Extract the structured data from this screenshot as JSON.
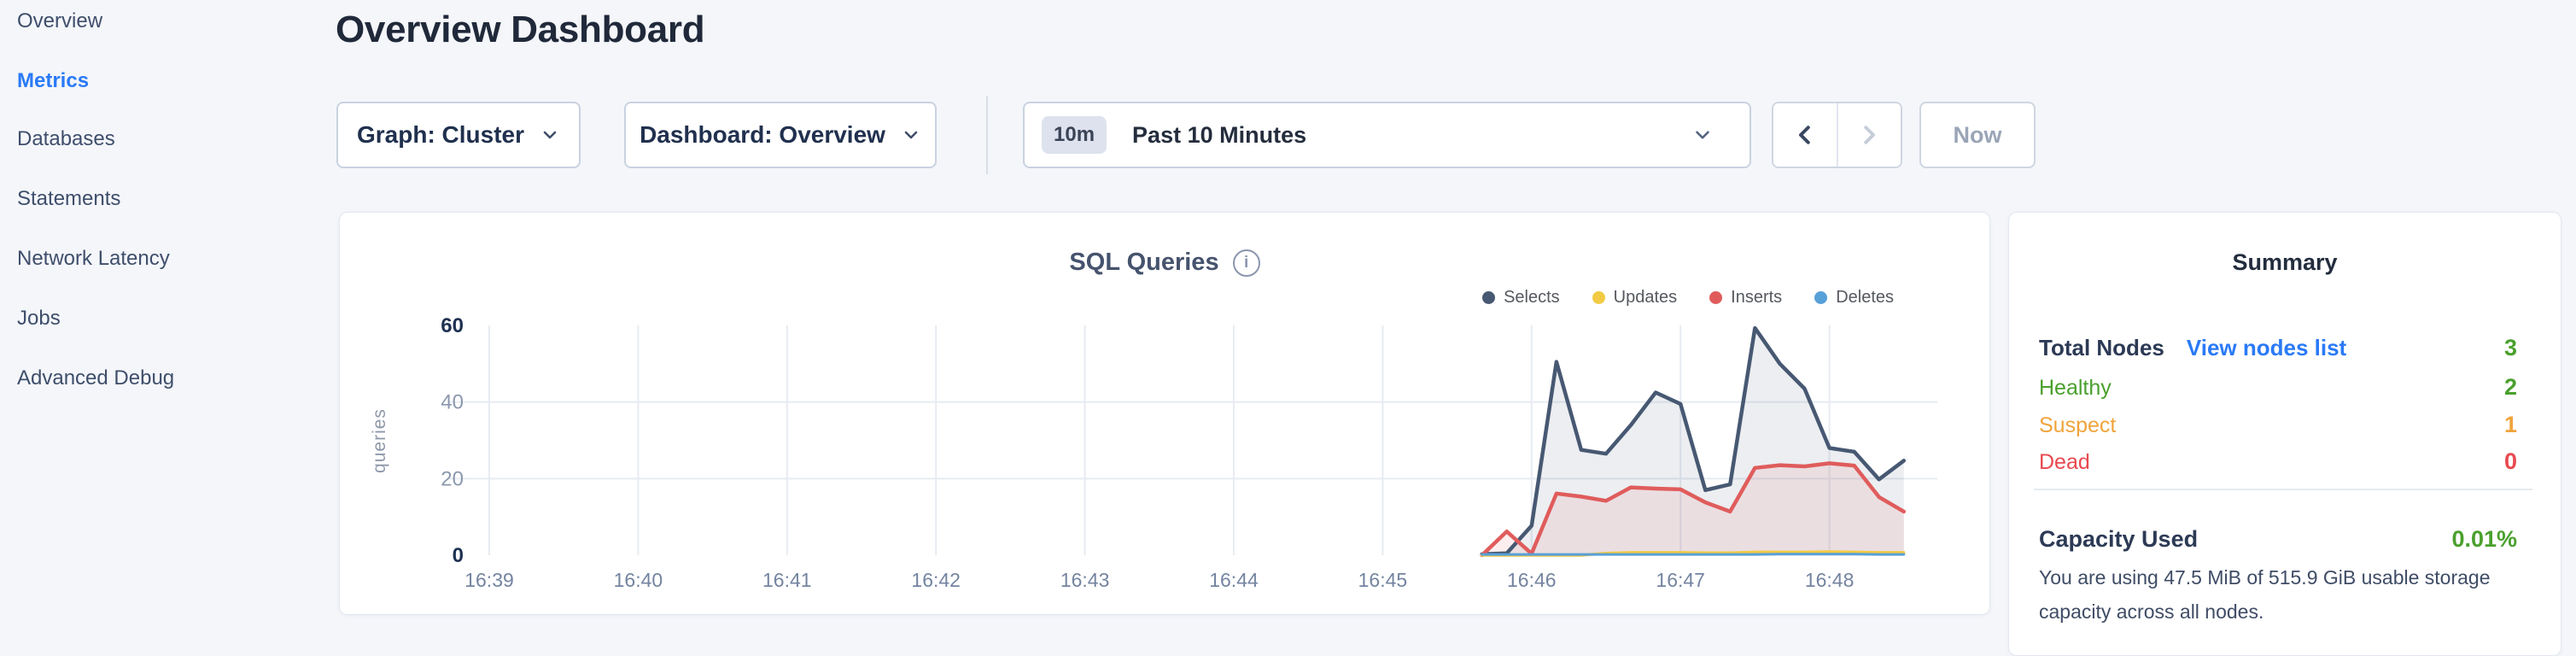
{
  "page": {
    "title": "Overview Dashboard"
  },
  "sidebar": {
    "items": [
      {
        "label": "Overview",
        "active": false
      },
      {
        "label": "Metrics",
        "active": true
      },
      {
        "label": "Databases",
        "active": false
      },
      {
        "label": "Statements",
        "active": false
      },
      {
        "label": "Network Latency",
        "active": false
      },
      {
        "label": "Jobs",
        "active": false
      },
      {
        "label": "Advanced Debug",
        "active": false
      }
    ]
  },
  "toolbar": {
    "graph_dropdown": "Graph: Cluster",
    "dashboard_dropdown": "Dashboard: Overview",
    "time_badge": "10m",
    "time_value": "Past 10 Minutes",
    "now_button": "Now"
  },
  "chart_data": {
    "type": "area",
    "title": "SQL Queries",
    "ylabel": "queries",
    "xlabel": "",
    "ylim": [
      0,
      60
    ],
    "yticks": [
      0,
      20,
      40,
      60
    ],
    "x_categories": [
      "16:39",
      "16:40",
      "16:41",
      "16:42",
      "16:43",
      "16:44",
      "16:45",
      "16:46",
      "16:47",
      "16:48"
    ],
    "grid": "on",
    "legend_position": "top-right",
    "x_start": "16:45:40",
    "sample_interval_seconds": 10,
    "series": [
      {
        "name": "Selects",
        "color": "#475872",
        "fill": "rgba(71,88,114,0.10)",
        "width": 4.5,
        "values": [
          0.3,
          0.5,
          7.7,
          50.5,
          27.5,
          26.5,
          34.0,
          42.5,
          39.5,
          17.0,
          18.5,
          59.3,
          50.0,
          43.5,
          28.0,
          27.0,
          19.8,
          24.7
        ]
      },
      {
        "name": "Updates",
        "color": "#f2ca43",
        "fill": "rgba(242,202,67,0.10)",
        "width": 3.5,
        "values": [
          0,
          0,
          0,
          0,
          0,
          0.5,
          0.7,
          0.7,
          0.7,
          0.6,
          0.6,
          0.8,
          0.8,
          0.8,
          0.9,
          0.8,
          0.7,
          0.7
        ]
      },
      {
        "name": "Inserts",
        "color": "#e05c5c",
        "fill": "rgba(224,92,92,0.10)",
        "width": 4.5,
        "values": [
          0,
          6.2,
          0.4,
          16.1,
          15.3,
          14.2,
          17.7,
          17.4,
          17.2,
          13.8,
          11.4,
          22.8,
          23.5,
          23.2,
          24.0,
          23.4,
          15.2,
          11.4
        ]
      },
      {
        "name": "Deletes",
        "color": "#58a0d8",
        "fill": "rgba(88,160,216,0.10)",
        "width": 3,
        "values": [
          0.2,
          0.2,
          0.2,
          0.2,
          0.2,
          0.2,
          0.2,
          0.2,
          0.2,
          0.2,
          0.2,
          0.2,
          0.3,
          0.3,
          0.3,
          0.3,
          0.2,
          0.2
        ]
      }
    ],
    "axis_colors": {
      "major_tick": "#1e3152",
      "minor_tick": "#8c98ae",
      "x_tick": "#7484a0",
      "grid": "#e7ebf2",
      "axis_label": "#8e98a9"
    }
  },
  "summary": {
    "title": "Summary",
    "total_nodes": {
      "label": "Total Nodes",
      "link": "View nodes list",
      "value": "3",
      "color": "#4aa02d"
    },
    "rows": [
      {
        "label": "Healthy",
        "value": "2",
        "color": "#4aa02d"
      },
      {
        "label": "Suspect",
        "value": "1",
        "color": "#f0a43c"
      },
      {
        "label": "Dead",
        "value": "0",
        "color": "#e8494f"
      }
    ],
    "capacity": {
      "label": "Capacity Used",
      "value": "0.01%",
      "value_color": "#4aa02d",
      "description": "You are using 47.5 MiB of 515.9 GiB usable storage capacity across all nodes."
    }
  }
}
